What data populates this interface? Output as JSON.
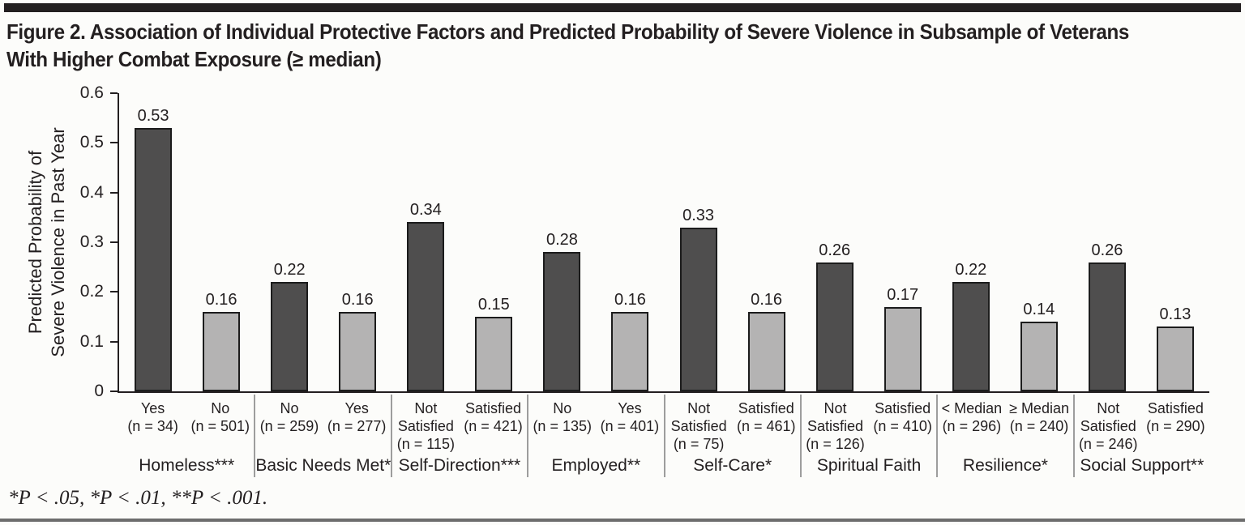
{
  "page": {
    "title_line1": "Figure 2. Association of Individual Protective Factors and Predicted Probability of Severe Violence in Subsample of Veterans",
    "title_line2": "With Higher Combat Exposure (≥ median)",
    "footnote": "*P < .05, *P < .01, **P < .001."
  },
  "y_axis": {
    "label_line1": "Predicted Probability of",
    "label_line2": "Severe Violence in Past Year",
    "ticks": [
      "0.6",
      "0.5",
      "0.4",
      "0.3",
      "0.2",
      "0.1",
      "0"
    ]
  },
  "colors": {
    "dark_bar": "#4f4e4e",
    "light_bar": "#b4b3b3",
    "bar_border": "#1c1c1c",
    "axis": "#231f20",
    "group_separator": "#9d9d9d",
    "top_rule": "#231f20",
    "bottom_rule": "#6d6d6d"
  },
  "chart_data": {
    "type": "bar",
    "title": "Figure 2. Association of Individual Protective Factors and Predicted Probability of Severe Violence in Subsample of Veterans With Higher Combat Exposure (≥ median)",
    "xlabel": "",
    "ylabel": "Predicted Probability of Severe Violence in Past Year",
    "ylim": [
      0,
      0.6
    ],
    "ytick_interval": 0.1,
    "grid": false,
    "legend": "none",
    "groups": [
      {
        "factor": "Homeless***",
        "bars": [
          {
            "label": "Yes",
            "n": "(n = 34)",
            "value": 0.53,
            "shade": "dark"
          },
          {
            "label": "No",
            "n": "(n = 501)",
            "value": 0.16,
            "shade": "light"
          }
        ]
      },
      {
        "factor": "Basic Needs Met*",
        "bars": [
          {
            "label": "No",
            "n": "(n = 259)",
            "value": 0.22,
            "shade": "dark"
          },
          {
            "label": "Yes",
            "n": "(n = 277)",
            "value": 0.16,
            "shade": "light"
          }
        ]
      },
      {
        "factor": "Self-Direction***",
        "bars": [
          {
            "label": "Not Satisfied",
            "n": "(n = 115)",
            "value": 0.34,
            "shade": "dark"
          },
          {
            "label": "Satisfied",
            "n": "(n = 421)",
            "value": 0.15,
            "shade": "light"
          }
        ]
      },
      {
        "factor": "Employed**",
        "bars": [
          {
            "label": "No",
            "n": "(n = 135)",
            "value": 0.28,
            "shade": "dark"
          },
          {
            "label": "Yes",
            "n": "(n = 401)",
            "value": 0.16,
            "shade": "light"
          }
        ]
      },
      {
        "factor": "Self-Care*",
        "bars": [
          {
            "label": "Not Satisfied",
            "n": "(n = 75)",
            "value": 0.33,
            "shade": "dark"
          },
          {
            "label": "Satisfied",
            "n": "(n = 461)",
            "value": 0.16,
            "shade": "light"
          }
        ]
      },
      {
        "factor": "Spiritual Faith",
        "bars": [
          {
            "label": "Not Satisfied",
            "n": "(n = 126)",
            "value": 0.26,
            "shade": "dark"
          },
          {
            "label": "Satisfied",
            "n": "(n = 410)",
            "value": 0.17,
            "shade": "light"
          }
        ]
      },
      {
        "factor": "Resilience*",
        "bars": [
          {
            "label": "< Median",
            "n": "(n = 296)",
            "value": 0.22,
            "shade": "dark"
          },
          {
            "label": "≥ Median",
            "n": "(n = 240)",
            "value": 0.14,
            "shade": "light"
          }
        ]
      },
      {
        "factor": "Social Support**",
        "bars": [
          {
            "label": "Not Satisfied",
            "n": "(n = 246)",
            "value": 0.26,
            "shade": "dark"
          },
          {
            "label": "Satisfied",
            "n": "(n = 290)",
            "value": 0.13,
            "shade": "light"
          }
        ]
      }
    ]
  }
}
